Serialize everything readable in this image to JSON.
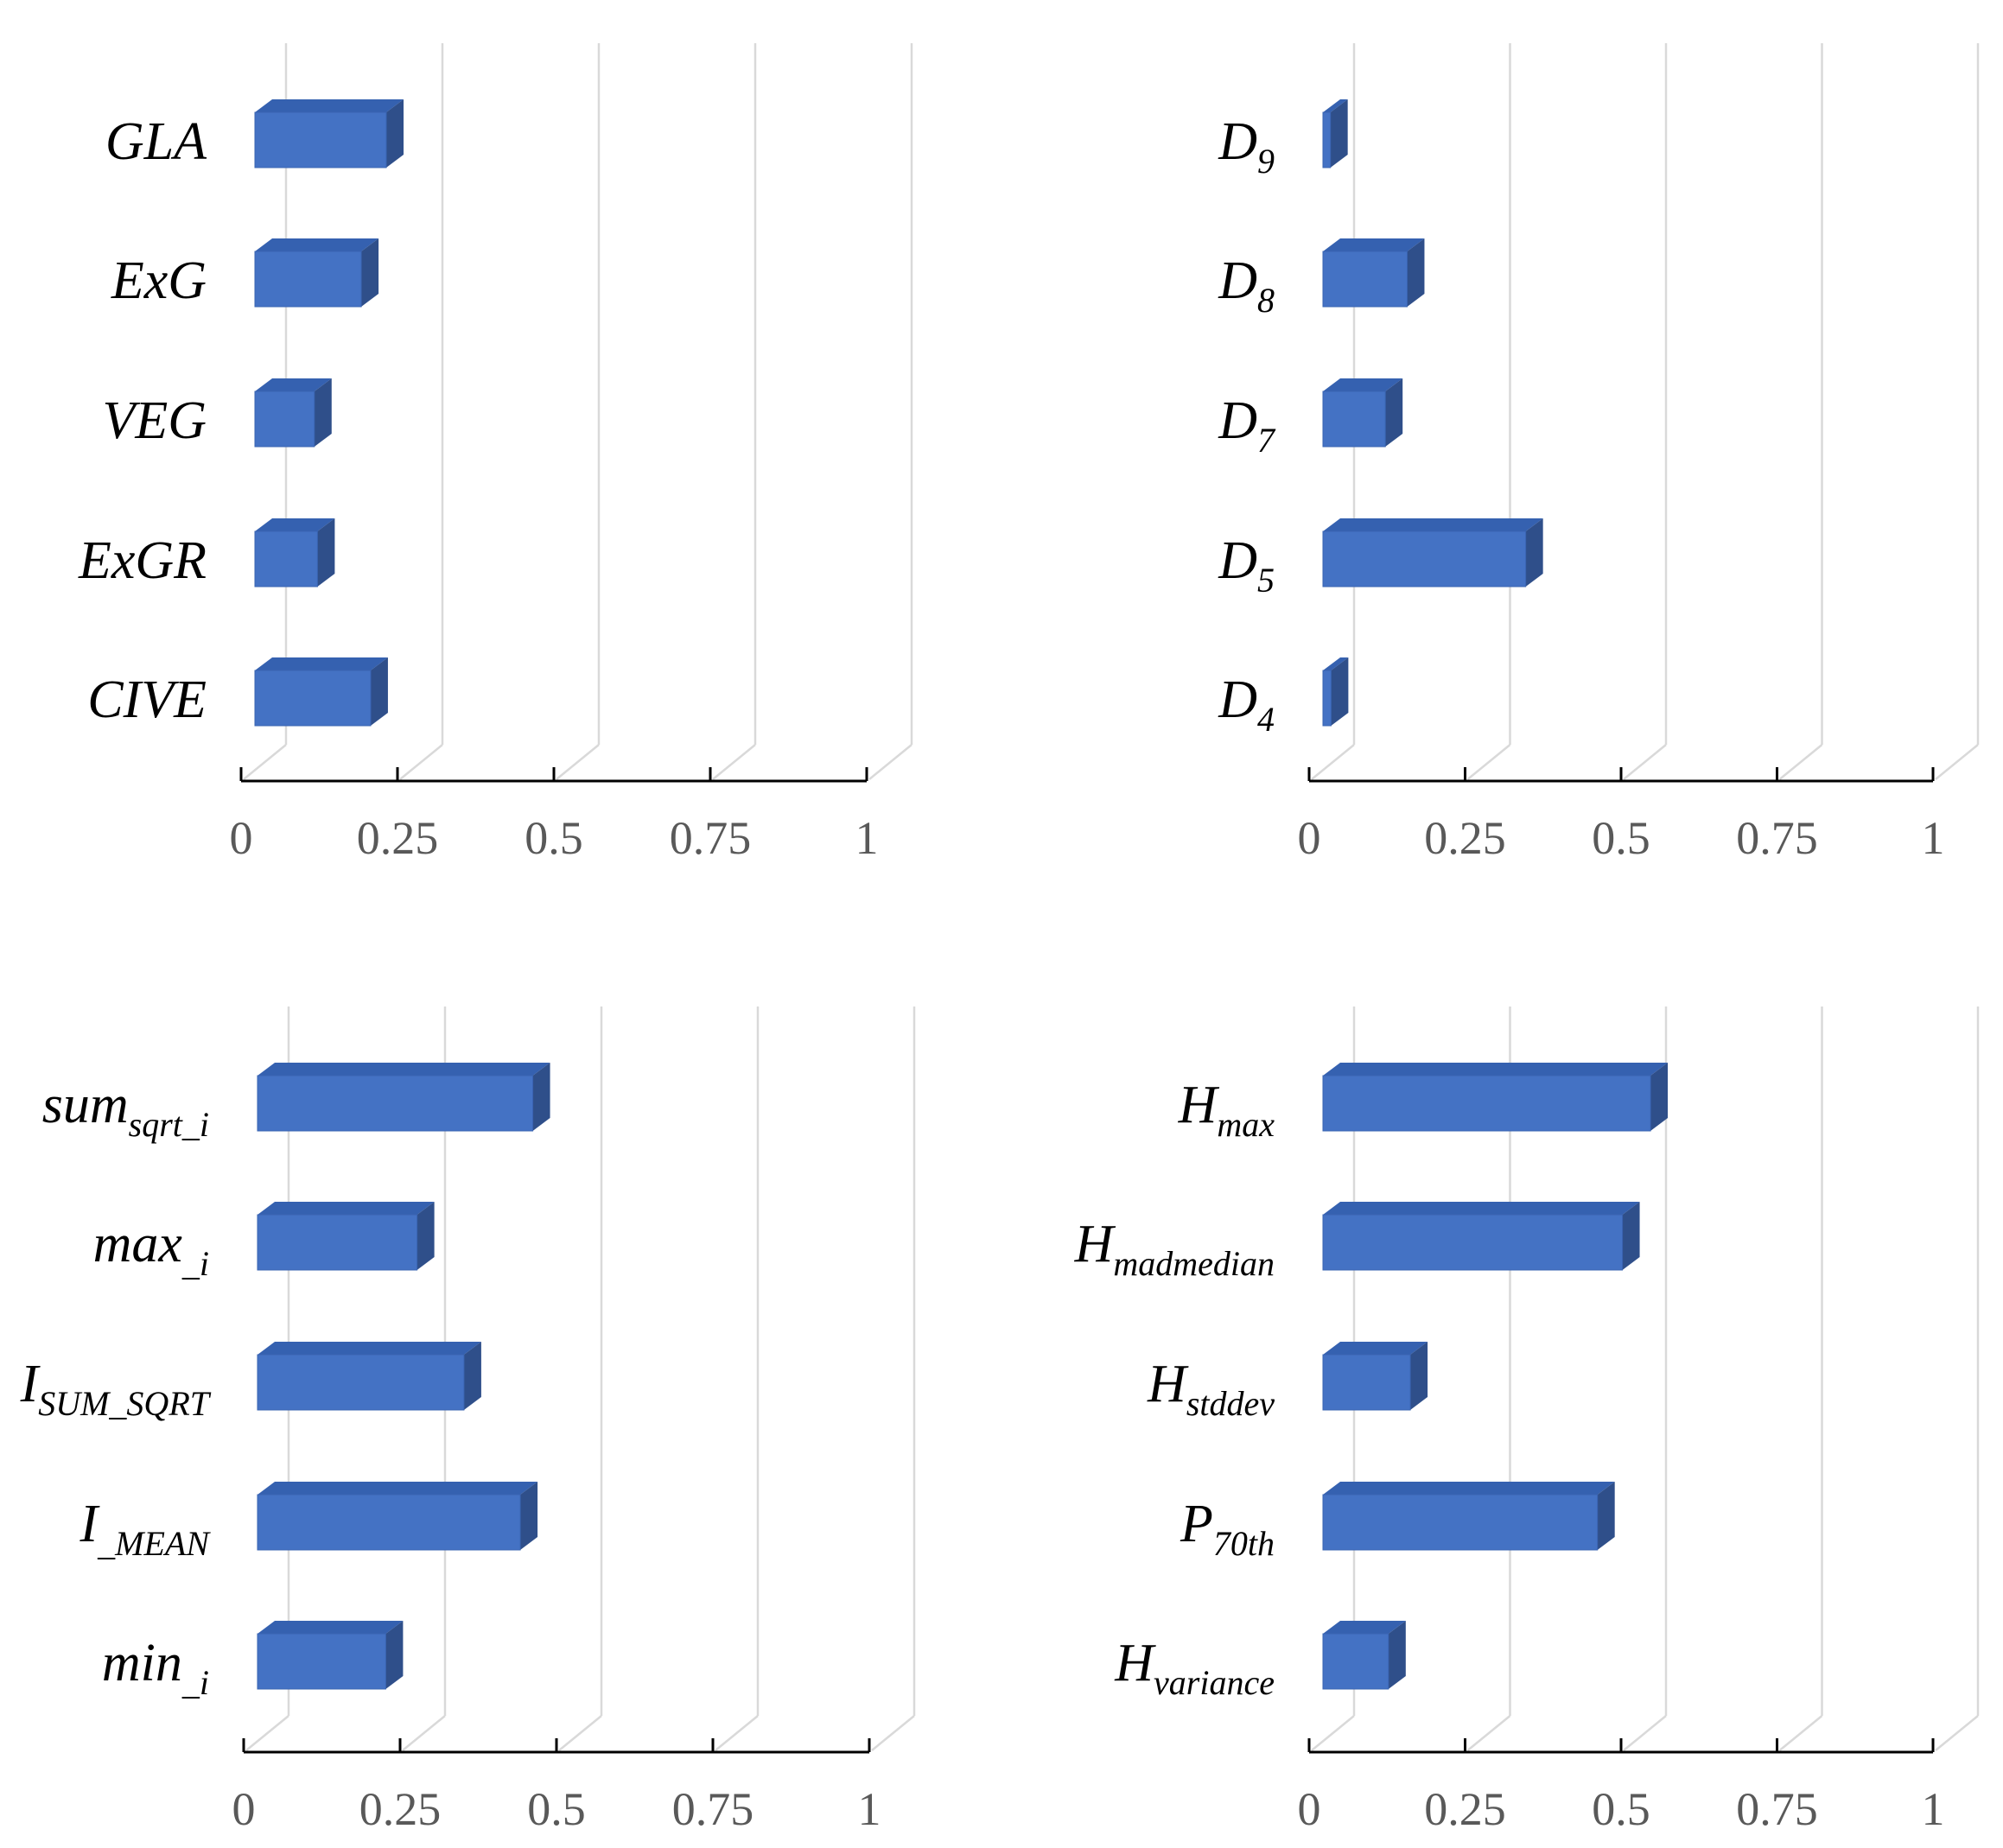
{
  "colors": {
    "bar_front": "#4472C4",
    "bar_top": "#3561B0",
    "bar_side": "#2F4F8A",
    "bar_edge": "#3A64B2",
    "gridline": "#D9D9D9",
    "axis": "#000000",
    "tick_text": "#595959"
  },
  "chart_data": [
    {
      "type": "bar",
      "orientation": "horizontal",
      "style": "3d",
      "panel": "top-left",
      "xlim": [
        0,
        1
      ],
      "ticks": [
        0,
        0.25,
        0.5,
        0.75,
        1
      ],
      "tick_labels": [
        "0",
        "0.25",
        "0.5",
        "0.75",
        "1"
      ],
      "bars": [
        {
          "label": "GLA",
          "sub": "",
          "value": 0.21
        },
        {
          "label": "ExG",
          "sub": "",
          "value": 0.17
        },
        {
          "label": "VEG",
          "sub": "",
          "value": 0.095
        },
        {
          "label": "ExGR",
          "sub": "",
          "value": 0.1
        },
        {
          "label": "CIVE",
          "sub": "",
          "value": 0.185
        }
      ]
    },
    {
      "type": "bar",
      "orientation": "horizontal",
      "style": "3d",
      "panel": "top-right",
      "xlim": [
        0,
        1
      ],
      "ticks": [
        0,
        0.25,
        0.5,
        0.75,
        1
      ],
      "tick_labels": [
        "0",
        "0.25",
        "0.5",
        "0.75",
        "1"
      ],
      "bars": [
        {
          "label": "D",
          "sub": "9",
          "value": 0.012
        },
        {
          "label": "D",
          "sub": "8",
          "value": 0.135
        },
        {
          "label": "D",
          "sub": "7",
          "value": 0.1
        },
        {
          "label": "D",
          "sub": "5",
          "value": 0.325
        },
        {
          "label": "D",
          "sub": "4",
          "value": 0.013
        }
      ]
    },
    {
      "type": "bar",
      "orientation": "horizontal",
      "style": "3d",
      "panel": "bottom-left",
      "xlim": [
        0,
        1
      ],
      "ticks": [
        0,
        0.25,
        0.5,
        0.75,
        1
      ],
      "tick_labels": [
        "0",
        "0.25",
        "0.5",
        "0.75",
        "1"
      ],
      "bars": [
        {
          "label": "sum",
          "sub": "sqrt_i",
          "value": 0.44
        },
        {
          "label": "max",
          "sub": "_i",
          "value": 0.255
        },
        {
          "label": "I",
          "sub": "SUM_SQRT",
          "value": 0.33
        },
        {
          "label": "I",
          "sub": "_MEAN",
          "value": 0.42
        },
        {
          "label": "min",
          "sub": "_i",
          "value": 0.205
        }
      ]
    },
    {
      "type": "bar",
      "orientation": "horizontal",
      "style": "3d",
      "panel": "bottom-right",
      "xlim": [
        0,
        1
      ],
      "ticks": [
        0,
        0.25,
        0.5,
        0.75,
        1
      ],
      "tick_labels": [
        "0",
        "0.25",
        "0.5",
        "0.75",
        "1"
      ],
      "bars": [
        {
          "label": "H",
          "sub": "max",
          "value": 0.525
        },
        {
          "label": "H",
          "sub": "madmedian",
          "value": 0.48
        },
        {
          "label": "H",
          "sub": "stddev",
          "value": 0.14
        },
        {
          "label": "P",
          "sub": "70th",
          "value": 0.44
        },
        {
          "label": "H",
          "sub": "variance",
          "value": 0.105
        }
      ]
    }
  ]
}
